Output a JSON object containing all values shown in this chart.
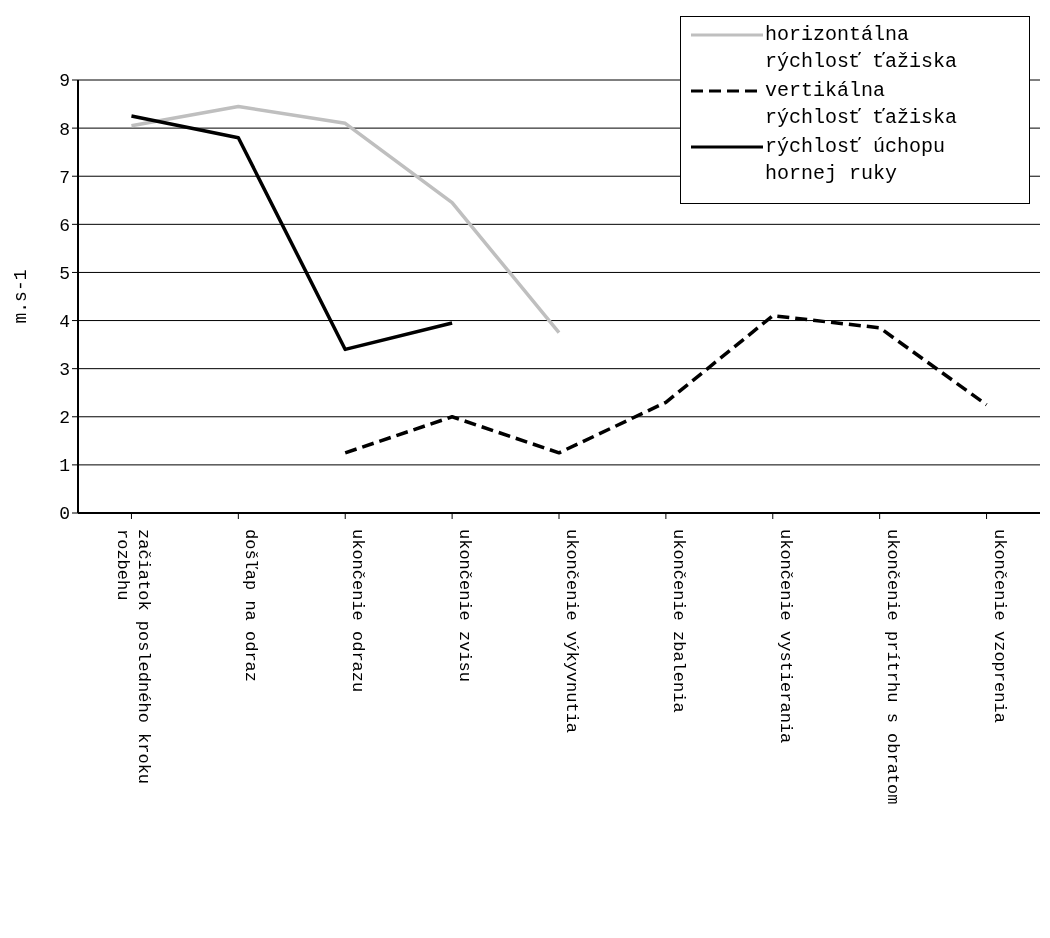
{
  "chart_data": {
    "type": "line",
    "ylabel": "m.s-1",
    "categories": [
      "začiatok posledného kroku rozbehu",
      "došľap na odraz",
      "ukončenie odrazu",
      "ukončenie zvisu",
      "ukončenie výkyvnutia",
      "ukončenie zbalenia",
      "ukončenie vystierania",
      "ukončenie prítrhu s obratom",
      "ukončenie vzoprenia"
    ],
    "series": [
      {
        "name": "horizontálna rýchlosť ťažiska",
        "color": "#bfbfbf",
        "line_style": "solid",
        "values": [
          8.05,
          8.45,
          8.1,
          6.45,
          3.75,
          null,
          null,
          null,
          null
        ]
      },
      {
        "name": "vertikálna rýchlosť ťažiska",
        "color": "#000000",
        "line_style": "dashed",
        "values": [
          null,
          null,
          1.25,
          2.0,
          1.25,
          2.3,
          4.1,
          3.85,
          2.25
        ]
      },
      {
        "name": "rýchlosť úchopu hornej ruky",
        "color": "#000000",
        "line_style": "solid",
        "values": [
          8.25,
          7.8,
          3.4,
          3.95,
          null,
          null,
          null,
          null,
          null
        ]
      }
    ],
    "ylim": [
      0,
      9
    ],
    "yticks": [
      0,
      1,
      2,
      3,
      4,
      5,
      6,
      7,
      8,
      9
    ],
    "grid": "y",
    "legend": "top right",
    "marker": "none"
  }
}
